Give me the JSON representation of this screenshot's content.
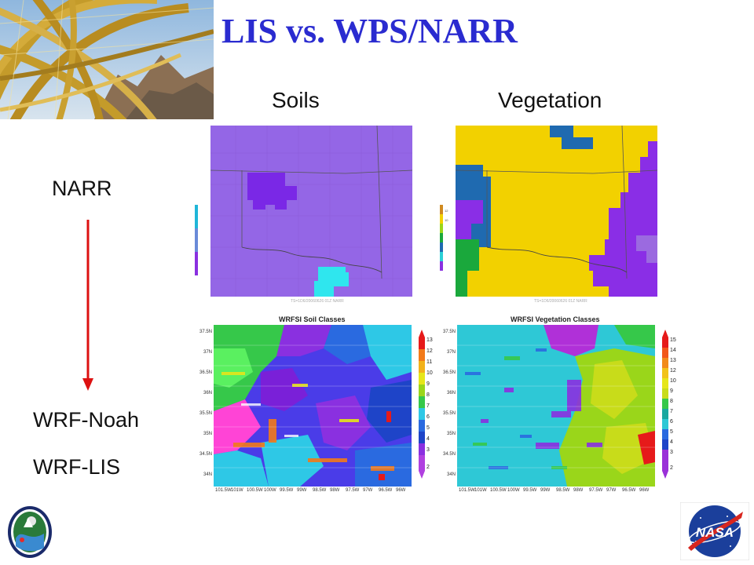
{
  "title": "LIS vs. WPS/NARR",
  "columns": {
    "left": "Soils",
    "right": "Vegetation"
  },
  "rows": {
    "top": "NARR",
    "bottom_1": "WRF-Noah",
    "bottom_2": "WRF-LIS"
  },
  "colors": {
    "title": "#2a2bd0",
    "arrow": "#dd1111",
    "soil_base": "#9466e6",
    "veg_yellow": "#f2d100",
    "veg_purple": "#8a2ee6"
  },
  "maps": {
    "soil_title": "WRFSI Soil Classes",
    "veg_title": "WRFSI Vegetation Classes",
    "lat_ticks": [
      "37.5N",
      "37N",
      "36.5N",
      "36N",
      "35.5N",
      "35N",
      "34.5N",
      "34N"
    ],
    "lon_ticks": [
      "101.5W",
      "101W",
      "100.5W",
      "100W",
      "99.5W",
      "99W",
      "98.5W",
      "98W",
      "97.5W",
      "97W",
      "96.5W",
      "96W"
    ],
    "soil_colorbar": [
      "13",
      "12",
      "11",
      "10",
      "9",
      "8",
      "7",
      "6",
      "5",
      "4",
      "3",
      "2"
    ],
    "veg_colorbar": [
      "15",
      "14",
      "13",
      "12",
      "10",
      "9",
      "8",
      "7",
      "6",
      "5",
      "4",
      "3",
      "2"
    ]
  },
  "logos": {
    "left": "logo-emblem",
    "right": "NASA"
  }
}
